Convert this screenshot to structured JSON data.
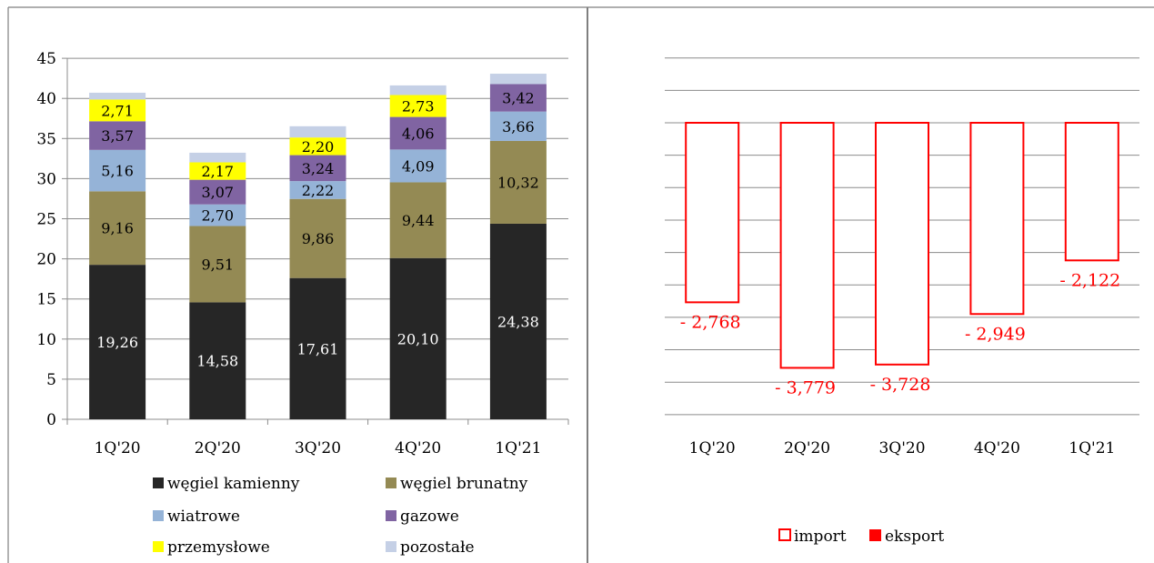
{
  "chart_data": [
    {
      "type": "bar",
      "stacked": true,
      "categories": [
        "1Q'20",
        "2Q'20",
        "3Q'20",
        "4Q'20",
        "1Q'21"
      ],
      "ylim": [
        0,
        45
      ],
      "yticks": [
        "0",
        "5",
        "10",
        "15",
        "20",
        "25",
        "30",
        "35",
        "40",
        "45"
      ],
      "grid": true,
      "legend_position": "bottom",
      "series": [
        {
          "name": "węgiel kamienny",
          "color": "#262626",
          "values": [
            19.26,
            14.58,
            17.61,
            20.1,
            24.38
          ],
          "labels": [
            "19,26",
            "14,58",
            "17,61",
            "20,10",
            "24,38"
          ]
        },
        {
          "name": "węgiel brunatny",
          "color": "#948a54",
          "values": [
            9.16,
            9.51,
            9.86,
            9.44,
            10.32
          ],
          "labels": [
            "9,16",
            "9,51",
            "9,86",
            "9,44",
            "10,32"
          ]
        },
        {
          "name": "wiatrowe",
          "color": "#95b3d7",
          "values": [
            5.16,
            2.7,
            2.22,
            4.09,
            3.66
          ],
          "labels": [
            "5,16",
            "2,70",
            "2,22",
            "4,09",
            "3,66"
          ]
        },
        {
          "name": "gazowe",
          "color": "#8064a2",
          "values": [
            3.57,
            3.07,
            3.24,
            4.06,
            3.42
          ],
          "labels": [
            "3,57",
            "3,07",
            "3,24",
            "4,06",
            "3,42"
          ]
        },
        {
          "name": "przemysłowe",
          "color": "#ffff00",
          "values": [
            2.71,
            2.17,
            2.2,
            2.73,
            0
          ],
          "labels": [
            "2,71",
            "2,17",
            "2,20",
            "2,73",
            ""
          ]
        },
        {
          "name": "pozostałe",
          "color": "#c5d0e6",
          "values": [
            0.85,
            1.2,
            1.4,
            1.2,
            1.3
          ],
          "labels": [
            "",
            "",
            "",
            "",
            ""
          ]
        }
      ]
    },
    {
      "type": "bar",
      "categories": [
        "1Q'20",
        "2Q'20",
        "3Q'20",
        "4Q'20",
        "1Q'21"
      ],
      "ylim": [
        -4.5,
        1.0
      ],
      "grid": true,
      "legend_position": "bottom",
      "series": [
        {
          "name": "import",
          "color": "#ff0000",
          "style": "outline",
          "values": [
            -2.768,
            -3.779,
            -3.728,
            -2.949,
            -2.122
          ],
          "labels": [
            "- 2,768",
            "- 3,779",
            "- 3,728",
            "- 2,949",
            "- 2,122"
          ]
        },
        {
          "name": "eksport",
          "color": "#ff0000",
          "style": "filled",
          "values": [
            0,
            0,
            0,
            0,
            0
          ]
        }
      ]
    }
  ]
}
